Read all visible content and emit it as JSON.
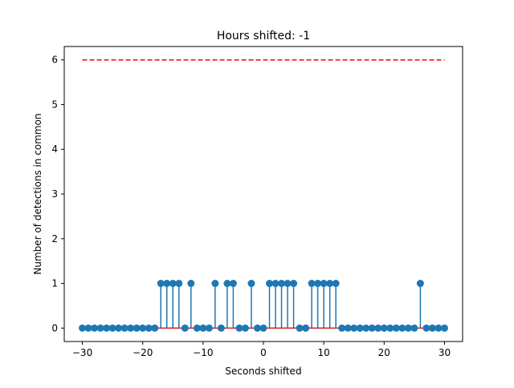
{
  "chart_data": {
    "type": "stem",
    "title": "Hours shifted: -1",
    "xlabel": "Seconds shifted",
    "ylabel": "Number of detections in common",
    "xlim": [
      -33,
      33
    ],
    "ylim": [
      -0.3,
      6.3
    ],
    "xticks": [
      -30,
      -20,
      -10,
      0,
      10,
      20,
      30
    ],
    "yticks": [
      0,
      1,
      2,
      3,
      4,
      5,
      6
    ],
    "grid": false,
    "x": [
      -30,
      -29,
      -28,
      -27,
      -26,
      -25,
      -24,
      -23,
      -22,
      -21,
      -20,
      -19,
      -18,
      -17,
      -16,
      -15,
      -14,
      -13,
      -12,
      -11,
      -10,
      -9,
      -8,
      -7,
      -6,
      -5,
      -4,
      -3,
      -2,
      -1,
      0,
      1,
      2,
      3,
      4,
      5,
      6,
      7,
      8,
      9,
      10,
      11,
      12,
      13,
      14,
      15,
      16,
      17,
      18,
      19,
      20,
      21,
      22,
      23,
      24,
      25,
      26,
      27,
      28,
      29,
      30
    ],
    "values": [
      0,
      0,
      0,
      0,
      0,
      0,
      0,
      0,
      0,
      0,
      0,
      0,
      0,
      1,
      1,
      1,
      1,
      0,
      1,
      0,
      0,
      0,
      1,
      0,
      1,
      1,
      0,
      0,
      1,
      0,
      0,
      1,
      1,
      1,
      1,
      1,
      0,
      0,
      1,
      1,
      1,
      1,
      1,
      0,
      0,
      0,
      0,
      0,
      0,
      0,
      0,
      0,
      0,
      0,
      0,
      0,
      1,
      0,
      0,
      0,
      0
    ],
    "reference_line": {
      "y": 6,
      "style": "dashed"
    },
    "colors": {
      "stem": "#1f77b4",
      "baseline": "#d62728",
      "reference": "#ff0000"
    }
  }
}
